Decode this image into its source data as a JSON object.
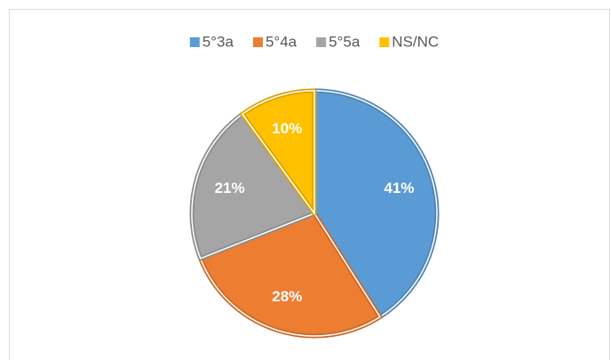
{
  "chart_data": {
    "type": "pie",
    "categories": [
      "5°3a",
      "5°4a",
      "5°5a",
      "NS/NC"
    ],
    "values": [
      41,
      28,
      21,
      10
    ],
    "value_labels": [
      "41%",
      "28%",
      "21%",
      "10%"
    ],
    "colors": [
      "#5b9bd5",
      "#ed7d31",
      "#a5a5a5",
      "#ffc000"
    ],
    "legend": "top"
  }
}
